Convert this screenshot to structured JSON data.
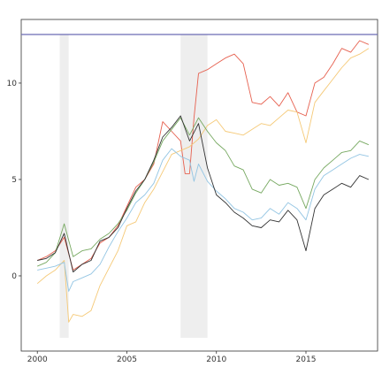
{
  "chart_data": {
    "type": "line",
    "title": "",
    "xlabel": "",
    "ylabel": "",
    "xlim": [
      1999.1,
      2019.0
    ],
    "ylim": [
      -3.9,
      13.3
    ],
    "grid": false,
    "legend": "none",
    "x_ticks": [
      2000,
      2005,
      2010,
      2015
    ],
    "x_tick_labels": [
      "2000",
      "2005",
      "2010",
      "2015"
    ],
    "y_ticks": [
      0,
      5,
      10
    ],
    "y_tick_labels": [
      "0",
      "5",
      "10"
    ],
    "shaded_periods": [
      {
        "start": 2001.25,
        "end": 2001.75
      },
      {
        "start": 2008.0,
        "end": 2009.5
      }
    ],
    "reference_line": {
      "y": 13.3,
      "color": "#6b6bb5"
    },
    "series": [
      {
        "color": "#e6604f",
        "x": [
          2000.0,
          2000.5,
          2001.0,
          2001.5,
          2002.0,
          2002.5,
          2003.0,
          2003.5,
          2004.0,
          2004.5,
          2005.0,
          2005.5,
          2006.0,
          2006.5,
          2007.0,
          2007.5,
          2008.0,
          2008.25,
          2008.5,
          2008.75,
          2009.0,
          2009.5,
          2010.0,
          2010.5,
          2011.0,
          2011.5,
          2012.0,
          2012.5,
          2013.0,
          2013.5,
          2014.0,
          2014.5,
          2015.0,
          2015.5,
          2016.0,
          2016.5,
          2017.0,
          2017.5,
          2018.0,
          2018.5
        ],
        "values": [
          0.8,
          1.0,
          1.3,
          2.0,
          0.3,
          0.6,
          0.9,
          1.7,
          2.0,
          2.6,
          3.6,
          4.6,
          5.0,
          5.8,
          8.0,
          7.5,
          7.0,
          5.3,
          5.3,
          8.2,
          10.5,
          10.7,
          11.0,
          11.3,
          11.5,
          11.0,
          9.0,
          8.9,
          9.3,
          8.8,
          9.5,
          8.5,
          8.3,
          10.0,
          10.3,
          11.0,
          11.8,
          11.6,
          12.2,
          12.0
        ]
      },
      {
        "color": "#f5c977",
        "x": [
          2000.0,
          2000.5,
          2001.0,
          2001.5,
          2001.75,
          2002.0,
          2002.5,
          2003.0,
          2003.5,
          2004.0,
          2004.5,
          2005.0,
          2005.5,
          2006.0,
          2006.5,
          2007.0,
          2007.5,
          2008.0,
          2008.5,
          2009.0,
          2009.5,
          2010.0,
          2010.5,
          2011.0,
          2011.5,
          2012.0,
          2012.5,
          2013.0,
          2013.5,
          2014.0,
          2014.5,
          2015.0,
          2015.5,
          2016.0,
          2016.5,
          2017.0,
          2017.5,
          2018.0,
          2018.5
        ],
        "values": [
          -0.4,
          0.0,
          0.3,
          0.8,
          -2.4,
          -2.0,
          -2.1,
          -1.8,
          -0.5,
          0.4,
          1.3,
          2.6,
          2.8,
          3.8,
          4.5,
          5.4,
          6.3,
          6.5,
          6.7,
          7.1,
          7.8,
          8.1,
          7.5,
          7.4,
          7.3,
          7.6,
          7.9,
          7.8,
          8.2,
          8.6,
          8.5,
          6.9,
          9.0,
          9.6,
          10.2,
          10.8,
          11.3,
          11.5,
          11.8
        ]
      },
      {
        "color": "#76a860",
        "x": [
          2000.0,
          2000.5,
          2001.0,
          2001.5,
          2002.0,
          2002.5,
          2003.0,
          2003.5,
          2004.0,
          2004.5,
          2005.0,
          2005.5,
          2006.0,
          2006.5,
          2007.0,
          2007.5,
          2008.0,
          2008.5,
          2009.0,
          2009.5,
          2010.0,
          2010.5,
          2011.0,
          2011.5,
          2012.0,
          2012.5,
          2013.0,
          2013.5,
          2014.0,
          2014.5,
          2015.0,
          2015.5,
          2016.0,
          2016.5,
          2017.0,
          2017.5,
          2018.0,
          2018.5
        ],
        "values": [
          0.5,
          0.7,
          1.2,
          2.7,
          1.0,
          1.3,
          1.4,
          1.9,
          2.2,
          2.7,
          3.4,
          4.3,
          5.0,
          5.9,
          7.0,
          7.6,
          8.2,
          7.3,
          8.2,
          7.5,
          6.9,
          6.5,
          5.7,
          5.5,
          4.5,
          4.3,
          5.0,
          4.7,
          4.8,
          4.6,
          3.5,
          5.0,
          5.6,
          6.0,
          6.4,
          6.5,
          7.0,
          6.8
        ]
      },
      {
        "color": "#93c5e3",
        "x": [
          2000.0,
          2000.5,
          2001.0,
          2001.5,
          2001.75,
          2002.0,
          2002.5,
          2003.0,
          2003.5,
          2004.0,
          2004.5,
          2005.0,
          2005.5,
          2006.0,
          2006.5,
          2007.0,
          2007.5,
          2008.0,
          2008.5,
          2008.75,
          2009.0,
          2009.5,
          2010.0,
          2010.5,
          2011.0,
          2011.5,
          2012.0,
          2012.5,
          2013.0,
          2013.5,
          2014.0,
          2014.5,
          2015.0,
          2015.5,
          2016.0,
          2016.5,
          2017.0,
          2017.5,
          2018.0,
          2018.5
        ],
        "values": [
          0.3,
          0.4,
          0.5,
          0.7,
          -0.8,
          -0.3,
          -0.1,
          0.1,
          0.6,
          1.5,
          2.3,
          3.0,
          3.8,
          4.2,
          4.8,
          6.0,
          6.6,
          6.2,
          6.0,
          4.9,
          5.8,
          4.9,
          4.4,
          4.0,
          3.5,
          3.3,
          2.9,
          3.0,
          3.5,
          3.2,
          3.8,
          3.5,
          2.9,
          4.5,
          5.2,
          5.5,
          5.8,
          6.1,
          6.3,
          6.2
        ]
      },
      {
        "color": "#333333",
        "x": [
          2000.0,
          2000.5,
          2001.0,
          2001.5,
          2002.0,
          2002.5,
          2003.0,
          2003.5,
          2004.0,
          2004.5,
          2005.0,
          2005.5,
          2006.0,
          2006.5,
          2007.0,
          2007.5,
          2008.0,
          2008.5,
          2009.0,
          2009.5,
          2010.0,
          2010.5,
          2011.0,
          2011.5,
          2012.0,
          2012.5,
          2013.0,
          2013.5,
          2014.0,
          2014.5,
          2015.0,
          2015.5,
          2016.0,
          2016.5,
          2017.0,
          2017.5,
          2018.0,
          2018.5
        ],
        "values": [
          0.8,
          0.9,
          1.2,
          2.2,
          0.2,
          0.6,
          0.8,
          1.8,
          2.0,
          2.5,
          3.5,
          4.4,
          5.0,
          6.0,
          7.2,
          7.7,
          8.3,
          7.0,
          7.9,
          5.6,
          4.2,
          3.8,
          3.3,
          3.0,
          2.6,
          2.5,
          2.9,
          2.8,
          3.4,
          2.9,
          1.3,
          3.5,
          4.2,
          4.5,
          4.8,
          4.6,
          5.2,
          5.0
        ]
      }
    ]
  }
}
